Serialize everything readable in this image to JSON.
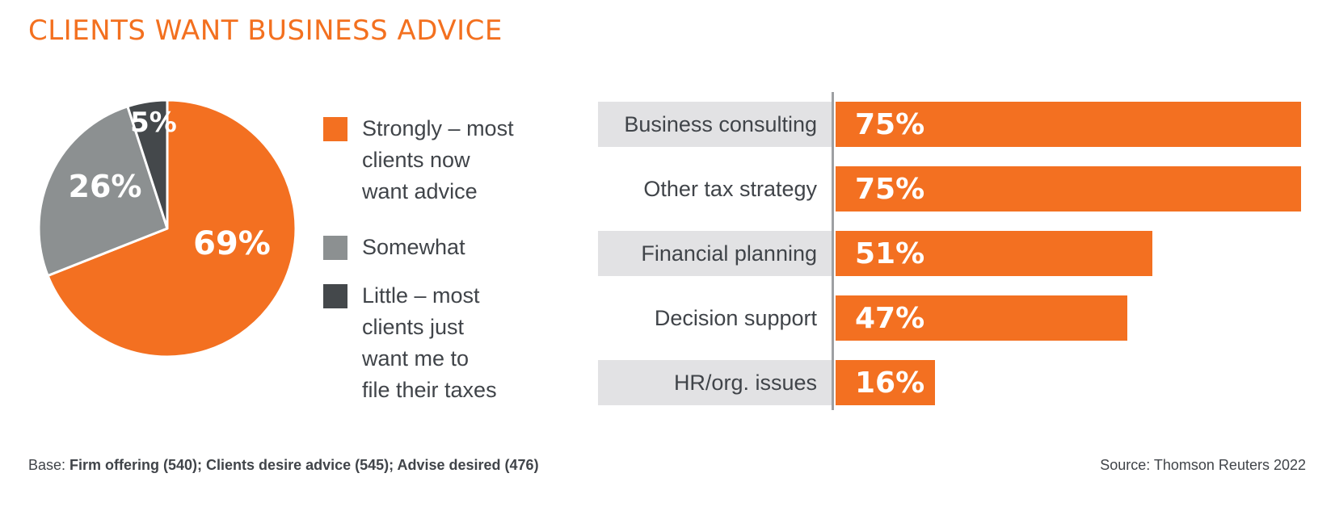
{
  "title": "CLIENTS WANT BUSINESS ADVICE",
  "colors": {
    "orange": "#F37021",
    "mid_gray": "#8C9091",
    "dark_gray": "#44484B",
    "row_shade": "#E2E2E4",
    "text_charcoal": "#404449",
    "axis_line": "#9EA0A3",
    "value_label": "#FFFFFF"
  },
  "chart_data": [
    {
      "type": "pie",
      "start_at": "12-oclock",
      "direction": "clockwise",
      "slices": [
        {
          "name": "strongly",
          "label": "Strongly – most clients now want advice",
          "value": 69,
          "display": "69%",
          "color": "#F37021"
        },
        {
          "name": "somewhat",
          "label": "Somewhat",
          "value": 26,
          "display": "26%",
          "color": "#8C9091"
        },
        {
          "name": "little",
          "label": "Little – most clients just want me to file their taxes",
          "value": 5,
          "display": "5%",
          "color": "#44484B"
        }
      ]
    },
    {
      "type": "bar",
      "orientation": "horizontal",
      "categories": [
        "Business consulting",
        "Other tax strategy",
        "Financial planning",
        "Decision support",
        "HR/org. issues"
      ],
      "values": [
        75,
        75,
        51,
        47,
        16
      ],
      "value_labels": [
        "75%",
        "75%",
        "51%",
        "47%",
        "16%"
      ],
      "xlim": [
        0,
        75
      ],
      "bar_color": "#F37021",
      "shaded_rows": [
        0,
        2,
        4
      ],
      "legend_position": "none"
    }
  ],
  "legend": {
    "items": [
      {
        "name": "strongly",
        "color": "#F37021",
        "lines": [
          "Strongly – most",
          "clients now",
          "want advice"
        ]
      },
      {
        "name": "somewhat",
        "color": "#8C9091",
        "lines": [
          "Somewhat"
        ]
      },
      {
        "name": "little",
        "color": "#44484B",
        "lines": [
          "Little – most",
          "clients just",
          "want me to",
          "file their taxes"
        ]
      }
    ]
  },
  "footer": {
    "base_prefix": "Base: ",
    "base_text": "Firm offering (540); Clients desire advice (545); Advise desired (476)",
    "source": "Source: Thomson Reuters 2022"
  }
}
